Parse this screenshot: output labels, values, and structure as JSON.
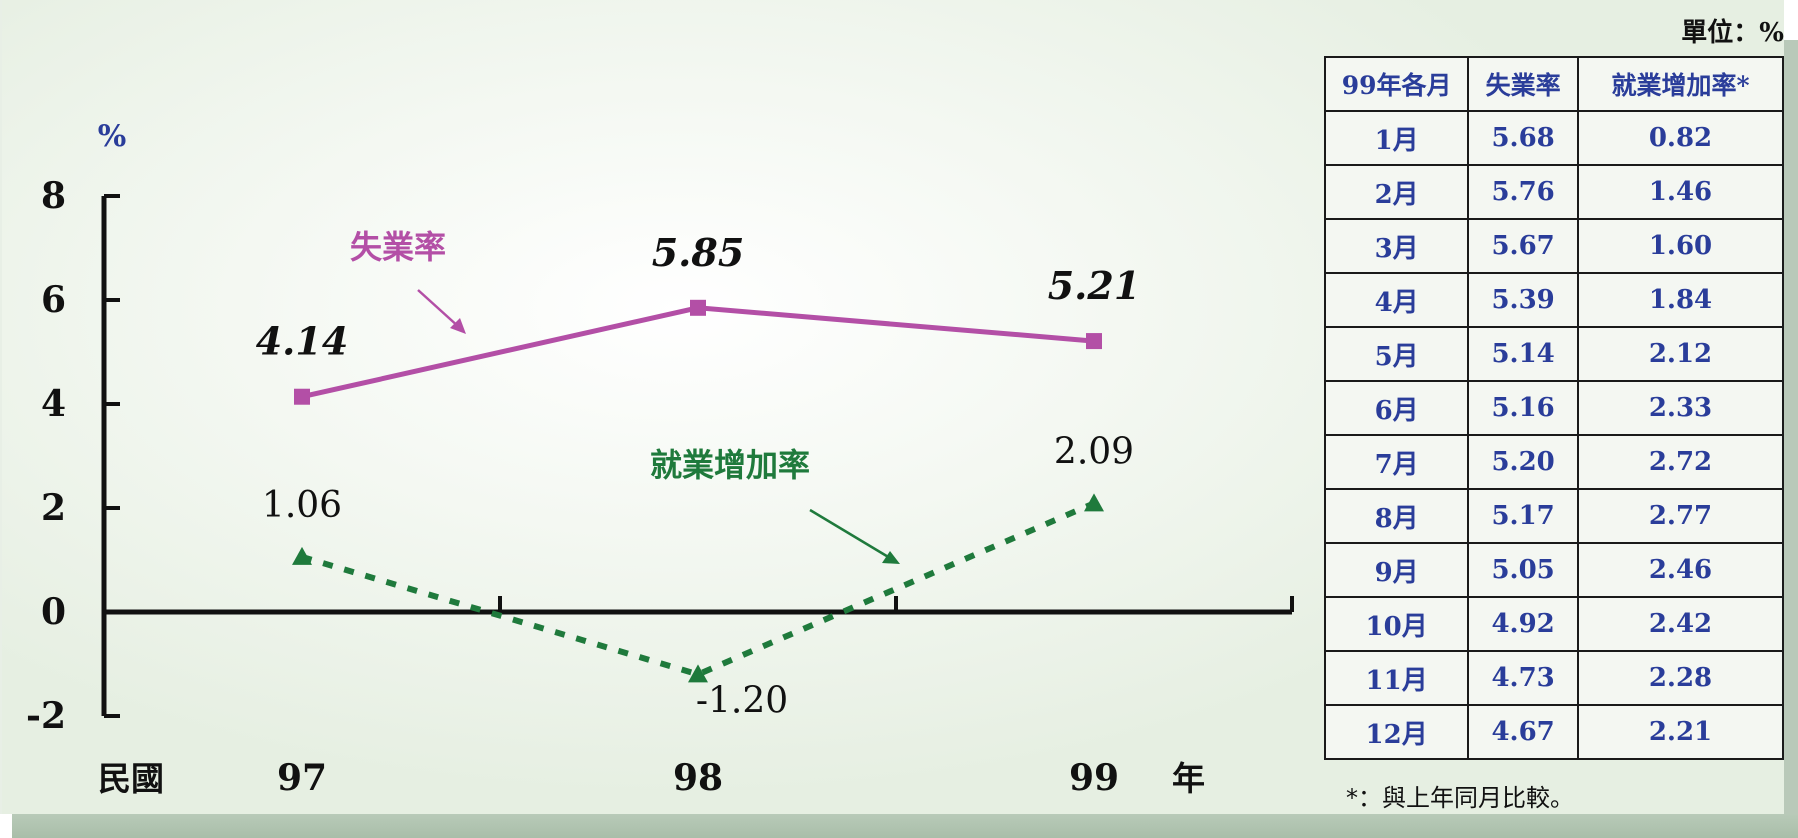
{
  "unit_label": "單位：%",
  "chart_data": {
    "type": "line",
    "y_axis_label": "%",
    "ylim": [
      -2,
      8
    ],
    "y_ticks": [
      "8",
      "6",
      "4",
      "2",
      "0",
      "-2"
    ],
    "x_prefix": "民國",
    "x_suffix": "年",
    "categories": [
      "97",
      "98",
      "99"
    ],
    "grid": false,
    "series": [
      {
        "name": "失業率",
        "values": [
          4.14,
          5.85,
          5.21
        ],
        "labels": [
          "4.14",
          "5.85",
          "5.21"
        ],
        "color": "#b34fa6",
        "marker": "square",
        "line_style": "solid"
      },
      {
        "name": "就業增加率",
        "values": [
          1.06,
          -1.2,
          2.09
        ],
        "labels": [
          "1.06",
          "-1.20",
          "2.09"
        ],
        "color": "#1f7a3c",
        "marker": "triangle",
        "line_style": "dotted"
      }
    ]
  },
  "table": {
    "headers": [
      "99年各月",
      "失業率",
      "就業增加率*"
    ],
    "rows": [
      [
        "1月",
        "5.68",
        "0.82"
      ],
      [
        "2月",
        "5.76",
        "1.46"
      ],
      [
        "3月",
        "5.67",
        "1.60"
      ],
      [
        "4月",
        "5.39",
        "1.84"
      ],
      [
        "5月",
        "5.14",
        "2.12"
      ],
      [
        "6月",
        "5.16",
        "2.33"
      ],
      [
        "7月",
        "5.20",
        "2.72"
      ],
      [
        "8月",
        "5.17",
        "2.77"
      ],
      [
        "9月",
        "5.05",
        "2.46"
      ],
      [
        "10月",
        "4.92",
        "2.42"
      ],
      [
        "11月",
        "4.73",
        "2.28"
      ],
      [
        "12月",
        "4.67",
        "2.21"
      ]
    ]
  },
  "footnote": "*：與上年同月比較。"
}
